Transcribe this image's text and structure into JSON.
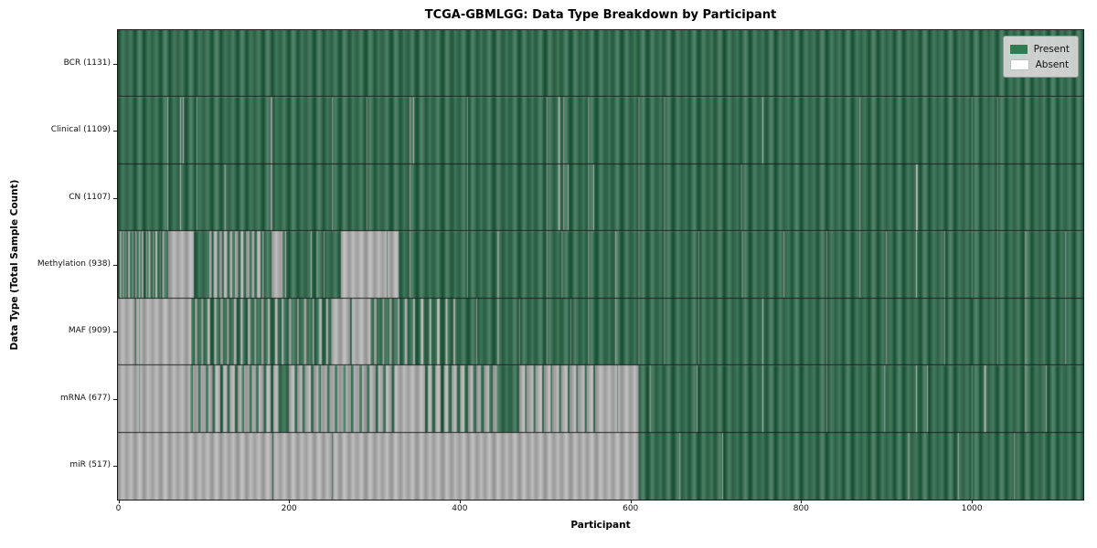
{
  "chart_data": {
    "type": "heatmap",
    "title": "TCGA-GBMLGG: Data Type Breakdown by Participant",
    "xlabel": "Participant",
    "ylabel": "Data Type (Total Sample Count)",
    "x_range": [
      0,
      1131
    ],
    "x_ticks": [
      0,
      200,
      400,
      600,
      800,
      1000
    ],
    "grid": false,
    "legend_position": "upper right",
    "legend": [
      {
        "label": "Present",
        "color": "#2e7d52"
      },
      {
        "label": "Absent",
        "color": "#ffffff"
      }
    ],
    "render_colors": {
      "present_base": "#2d6448",
      "absent_base": "#a8a8a8",
      "row_separator": "#1b1b1b"
    },
    "rows": [
      {
        "label": "BCR (1131)",
        "data_type": "BCR",
        "total_samples": 1131,
        "present_count": 1131,
        "absent_count": 0,
        "absent_runs": []
      },
      {
        "label": "Clinical (1109)",
        "data_type": "Clinical",
        "total_samples": 1109,
        "present_count": 1109,
        "absent_count": 22,
        "absent_runs": [
          [
            58,
            59
          ],
          [
            73,
            74
          ],
          [
            76,
            77
          ],
          [
            92,
            93
          ],
          [
            179,
            181
          ],
          [
            251,
            252
          ],
          [
            291,
            292
          ],
          [
            342,
            343
          ],
          [
            346,
            347
          ],
          [
            409,
            410
          ],
          [
            502,
            503
          ],
          [
            516,
            518
          ],
          [
            522,
            523
          ],
          [
            551,
            552
          ],
          [
            610,
            611
          ],
          [
            640,
            641
          ],
          [
            755,
            756
          ],
          [
            869,
            870
          ],
          [
            1000,
            1001
          ],
          [
            1030,
            1031
          ]
        ]
      },
      {
        "label": "CN (1107)",
        "data_type": "CN",
        "total_samples": 1107,
        "present_count": 1107,
        "absent_count": 24,
        "absent_runs": [
          [
            58,
            59
          ],
          [
            73,
            74
          ],
          [
            92,
            93
          ],
          [
            125,
            126
          ],
          [
            179,
            181
          ],
          [
            251,
            252
          ],
          [
            291,
            292
          ],
          [
            342,
            343
          ],
          [
            409,
            410
          ],
          [
            502,
            503
          ],
          [
            516,
            518
          ],
          [
            522,
            523
          ],
          [
            527,
            528
          ],
          [
            551,
            552
          ],
          [
            557,
            558
          ],
          [
            610,
            611
          ],
          [
            640,
            641
          ],
          [
            730,
            731
          ],
          [
            869,
            870
          ],
          [
            935,
            937
          ],
          [
            1000,
            1001
          ],
          [
            1030,
            1031
          ]
        ]
      },
      {
        "label": "Methylation (938)",
        "data_type": "Methylation",
        "total_samples": 938,
        "present_count": 938,
        "absent_count": 193,
        "absent_runs": [
          [
            2,
            4
          ],
          [
            6,
            7
          ],
          [
            9,
            10
          ],
          [
            12,
            14
          ],
          [
            17,
            18
          ],
          [
            20,
            22
          ],
          [
            25,
            26
          ],
          [
            28,
            30
          ],
          [
            33,
            34
          ],
          [
            36,
            38
          ],
          [
            41,
            42
          ],
          [
            44,
            46
          ],
          [
            49,
            50
          ],
          [
            52,
            54
          ],
          [
            59,
            89
          ],
          [
            107,
            110
          ],
          [
            112,
            116
          ],
          [
            119,
            122
          ],
          [
            124,
            128
          ],
          [
            131,
            134
          ],
          [
            137,
            141
          ],
          [
            144,
            147
          ],
          [
            150,
            154
          ],
          [
            157,
            160
          ],
          [
            163,
            167
          ],
          [
            169,
            171
          ],
          [
            180,
            193
          ],
          [
            196,
            197
          ],
          [
            226,
            227
          ],
          [
            233,
            234
          ],
          [
            241,
            242
          ],
          [
            261,
            315
          ],
          [
            316,
            329
          ],
          [
            342,
            343
          ],
          [
            409,
            410
          ],
          [
            445,
            446
          ],
          [
            502,
            503
          ],
          [
            520,
            521
          ],
          [
            551,
            552
          ],
          [
            583,
            584
          ],
          [
            610,
            611
          ],
          [
            640,
            641
          ],
          [
            680,
            681
          ],
          [
            731,
            732
          ],
          [
            780,
            781
          ],
          [
            830,
            831
          ],
          [
            869,
            870
          ],
          [
            900,
            901
          ],
          [
            935,
            936
          ],
          [
            968,
            969
          ],
          [
            1000,
            1001
          ],
          [
            1030,
            1031
          ],
          [
            1063,
            1064
          ],
          [
            1110,
            1111
          ]
        ]
      },
      {
        "label": "MAF (909)",
        "data_type": "MAF",
        "total_samples": 909,
        "present_count": 909,
        "absent_count": 222,
        "absent_runs": [
          [
            0,
            20
          ],
          [
            21,
            25
          ],
          [
            26,
            86
          ],
          [
            90,
            93
          ],
          [
            98,
            100
          ],
          [
            105,
            108
          ],
          [
            113,
            115
          ],
          [
            120,
            123
          ],
          [
            128,
            130
          ],
          [
            136,
            139
          ],
          [
            144,
            146
          ],
          [
            152,
            155
          ],
          [
            160,
            162
          ],
          [
            168,
            171
          ],
          [
            176,
            178
          ],
          [
            184,
            187
          ],
          [
            192,
            194
          ],
          [
            200,
            203
          ],
          [
            210,
            212
          ],
          [
            218,
            221
          ],
          [
            228,
            230
          ],
          [
            236,
            239
          ],
          [
            244,
            246
          ],
          [
            250,
            272
          ],
          [
            274,
            296
          ],
          [
            300,
            303
          ],
          [
            310,
            312
          ],
          [
            318,
            321
          ],
          [
            328,
            330
          ],
          [
            336,
            339
          ],
          [
            346,
            348
          ],
          [
            355,
            358
          ],
          [
            365,
            367
          ],
          [
            374,
            377
          ],
          [
            384,
            386
          ],
          [
            393,
            395
          ],
          [
            420,
            421
          ],
          [
            445,
            446
          ],
          [
            470,
            471
          ],
          [
            502,
            503
          ],
          [
            530,
            531
          ],
          [
            551,
            552
          ],
          [
            583,
            584
          ],
          [
            610,
            611
          ],
          [
            640,
            641
          ],
          [
            680,
            681
          ],
          [
            755,
            756
          ],
          [
            830,
            831
          ],
          [
            900,
            901
          ],
          [
            968,
            969
          ],
          [
            1030,
            1031
          ],
          [
            1063,
            1064
          ],
          [
            1110,
            1111
          ]
        ]
      },
      {
        "label": "mRNA (677)",
        "data_type": "mRNA",
        "total_samples": 677,
        "present_count": 677,
        "absent_count": 454,
        "absent_runs": [
          [
            0,
            25
          ],
          [
            26,
            85
          ],
          [
            88,
            94
          ],
          [
            97,
            103
          ],
          [
            106,
            111
          ],
          [
            114,
            120
          ],
          [
            123,
            128
          ],
          [
            131,
            137
          ],
          [
            140,
            145
          ],
          [
            148,
            154
          ],
          [
            157,
            162
          ],
          [
            165,
            171
          ],
          [
            174,
            179
          ],
          [
            182,
            188
          ],
          [
            200,
            207
          ],
          [
            210,
            216
          ],
          [
            219,
            226
          ],
          [
            229,
            235
          ],
          [
            238,
            245
          ],
          [
            248,
            254
          ],
          [
            257,
            264
          ],
          [
            267,
            273
          ],
          [
            276,
            283
          ],
          [
            286,
            292
          ],
          [
            295,
            302
          ],
          [
            305,
            311
          ],
          [
            314,
            321
          ],
          [
            324,
            330
          ],
          [
            330,
            360
          ],
          [
            363,
            368
          ],
          [
            372,
            378
          ],
          [
            382,
            387
          ],
          [
            391,
            397
          ],
          [
            401,
            406
          ],
          [
            410,
            416
          ],
          [
            420,
            425
          ],
          [
            429,
            435
          ],
          [
            439,
            444
          ],
          [
            470,
            477
          ],
          [
            479,
            487
          ],
          [
            489,
            497
          ],
          [
            499,
            507
          ],
          [
            509,
            517
          ],
          [
            519,
            527
          ],
          [
            529,
            537
          ],
          [
            539,
            547
          ],
          [
            549,
            557
          ],
          [
            559,
            569
          ],
          [
            569,
            585
          ],
          [
            586,
            610
          ],
          [
            623,
            624
          ],
          [
            678,
            679
          ],
          [
            755,
            756
          ],
          [
            830,
            831
          ],
          [
            898,
            899
          ],
          [
            935,
            936
          ],
          [
            948,
            949
          ],
          [
            1000,
            1001
          ],
          [
            1015,
            1017
          ],
          [
            1063,
            1064
          ],
          [
            1087,
            1088
          ]
        ]
      },
      {
        "label": "miR (517)",
        "data_type": "miR",
        "total_samples": 517,
        "present_count": 517,
        "absent_count": 614,
        "absent_runs": [
          [
            0,
            181
          ],
          [
            182,
            251
          ],
          [
            252,
            610
          ],
          [
            658,
            659
          ],
          [
            708,
            709
          ],
          [
            926,
            927
          ],
          [
            984,
            985
          ],
          [
            1000,
            1001
          ],
          [
            1050,
            1051
          ]
        ]
      }
    ]
  }
}
